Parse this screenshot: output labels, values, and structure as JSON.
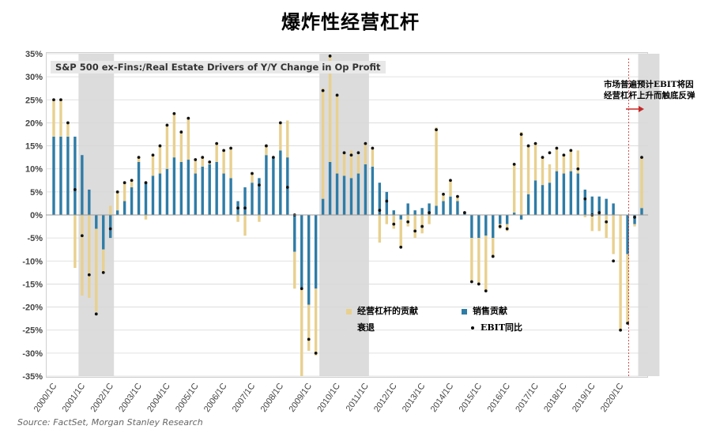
{
  "title": "爆炸性经营杠杆",
  "annotation": "市场普遍预计EBIT将因经营杠杆上升而触底反弹",
  "source": "Source: FactSet, Morgan Stanley Research",
  "colors": {
    "op_leverage": "#e8d08f",
    "sales": "#2f7ca6",
    "recession": "#dcdcdc",
    "ebit": "#111111",
    "arrow": "#c62828",
    "annotation_line": "#c62828"
  },
  "chart_data": {
    "type": "bar",
    "title": "S&P 500 ex-Fins:/Real Estate Drivers of Y/Y Change in Op Profit",
    "ylim": [
      -35,
      35
    ],
    "yticks": [
      35,
      30,
      25,
      20,
      15,
      10,
      5,
      0,
      -5,
      -10,
      -15,
      -20,
      -25,
      -30,
      -35
    ],
    "ytick_labels": [
      "35%",
      "30%",
      "25%",
      "20%",
      "15%",
      "10%",
      "5%",
      "0%",
      "-5%",
      "-10%",
      "-15%",
      "-20%",
      "-25%",
      "-30%",
      "-35%"
    ],
    "xtick_labels": [
      "2000/1C",
      "2001/1C",
      "2002/1C",
      "2003/1C",
      "2004/1C",
      "2005/1C",
      "2006/1C",
      "2007/1C",
      "2008/1C",
      "2009/1C",
      "2010/1C",
      "2011/1C",
      "2012/1C",
      "2013/1C",
      "2014/1C",
      "2015/1C",
      "2016/1C",
      "2017/1C",
      "2018/1C",
      "2019/1C",
      "2020/1C"
    ],
    "recessions": [
      [
        4,
        8
      ],
      [
        38,
        44
      ],
      [
        83,
        85
      ]
    ],
    "legend": [
      {
        "key": "op_leverage",
        "label": "经营杠杆的贡献"
      },
      {
        "key": "sales",
        "label": "销售贡献"
      },
      {
        "key": "recession",
        "label": "衰退"
      },
      {
        "key": "ebit",
        "label": "EBIT同比"
      }
    ],
    "series": [
      {
        "name": "销售贡献",
        "key": "sales",
        "values": [
          17,
          17,
          17,
          17,
          13,
          5.5,
          -3,
          -7.5,
          -5,
          1,
          3,
          6,
          11.5,
          7,
          8.5,
          9,
          10,
          12.5,
          11.5,
          12,
          9,
          10.5,
          11,
          11.5,
          9,
          8,
          3,
          6,
          7,
          8,
          13,
          12.5,
          14,
          12.5,
          -8,
          -16,
          -19.5,
          -16,
          3.5,
          11.5,
          9,
          8.5,
          8,
          9,
          11,
          10.5,
          7,
          5,
          1,
          -1,
          2.5,
          1,
          1.5,
          2.5,
          2,
          3,
          4,
          3,
          0.5,
          -5,
          -5,
          -4.5,
          -5,
          -2,
          -2,
          0.5,
          -1,
          4.5,
          7.5,
          6.5,
          7,
          9.5,
          9,
          9.5,
          9,
          5.5,
          4,
          4,
          3.5,
          2.5,
          0,
          -8.5,
          -2,
          1.5
        ]
      },
      {
        "name": "经营杠杆的贡献",
        "key": "op_leverage",
        "values": [
          8,
          8,
          3,
          -11.5,
          -17.5,
          -18,
          -18,
          -5,
          2,
          4,
          4,
          1.5,
          1,
          -1,
          4.5,
          6,
          9.5,
          9.5,
          6.5,
          9,
          3,
          2,
          0.5,
          4,
          5,
          6.5,
          -1.5,
          -4.5,
          2,
          -1.5,
          2,
          0,
          6,
          8,
          -8,
          -19,
          -10,
          -14.5,
          24,
          23,
          17,
          5,
          6,
          4,
          4.5,
          4,
          -6,
          -2,
          -3,
          -6,
          -2.5,
          -5,
          -4,
          -2,
          17,
          1.5,
          3.5,
          1,
          0,
          -9.5,
          -10,
          -12,
          -4,
          -1,
          -1.5,
          10.5,
          18,
          10.5,
          8,
          6,
          4,
          5,
          4,
          4.5,
          5,
          -0.5,
          -3.5,
          -3.5,
          -5,
          -8.5,
          -25,
          -15,
          -0.5,
          11
        ]
      },
      {
        "name": "EBIT同比",
        "key": "ebit",
        "values": [
          25,
          25,
          20,
          5.5,
          -4.5,
          -13,
          -21.5,
          -12.5,
          -3,
          5,
          7,
          7.5,
          12.5,
          7,
          13,
          15,
          19.5,
          22,
          18,
          21,
          12,
          12.5,
          11.5,
          15.5,
          14,
          14.5,
          1.5,
          1.5,
          9,
          6.5,
          15,
          12.5,
          20,
          6,
          0,
          -16,
          -27,
          -30,
          27,
          34.5,
          26,
          13.5,
          13,
          13.5,
          15.5,
          14.5,
          1,
          3,
          -2,
          -7,
          -1.5,
          -3.5,
          -2.5,
          0.5,
          18.5,
          4.5,
          7.5,
          4,
          0.5,
          -14.5,
          -15,
          -16.5,
          -9,
          -2.5,
          -3,
          11,
          17.5,
          15,
          15.5,
          12.5,
          13.5,
          14.5,
          13,
          14,
          10,
          3.5,
          0,
          0.5,
          -1.5,
          -10,
          -25,
          -23.5,
          -0.5,
          12.5
        ]
      }
    ]
  }
}
